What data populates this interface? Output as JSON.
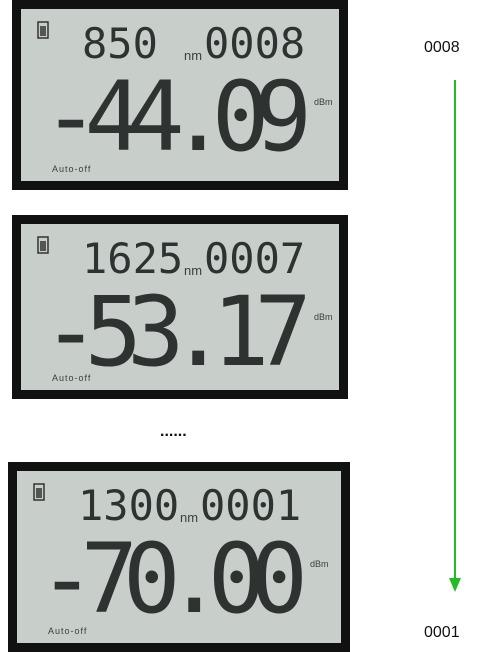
{
  "screens": [
    {
      "wavelength": "850",
      "wavelength_unit": "nm",
      "index": "0008",
      "reading": "-44.09",
      "reading_unit": "dBm",
      "status": "Auto-off"
    },
    {
      "wavelength": "1625",
      "wavelength_unit": "nm",
      "index": "0007",
      "reading": "-53.17",
      "reading_unit": "dBm",
      "status": "Auto-off"
    },
    {
      "wavelength": "1300",
      "wavelength_unit": "nm",
      "index": "0001",
      "reading": "-70.00",
      "reading_unit": "dBm",
      "status": "Auto-off"
    }
  ],
  "ellipsis": "......",
  "sequence": {
    "start": "0008",
    "end": "0001"
  }
}
